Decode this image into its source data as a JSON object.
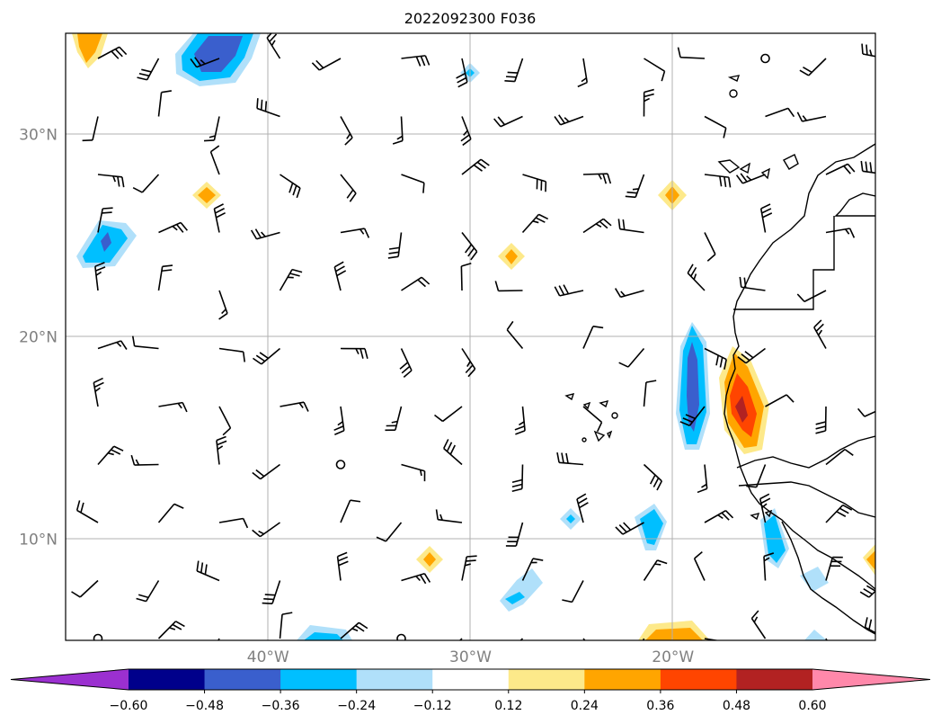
{
  "title": "2022092300 F036",
  "axes": {
    "lat_labels": [
      {
        "lat": 30,
        "label": "30°N"
      },
      {
        "lat": 20,
        "label": "20°N"
      },
      {
        "lat": 10,
        "label": "10°N"
      }
    ],
    "lon_labels": [
      {
        "lon": -40,
        "label": "40°W"
      },
      {
        "lon": -30,
        "label": "30°W"
      },
      {
        "lon": -20,
        "label": "20°W"
      }
    ],
    "extent": {
      "lon_min": -50,
      "lon_max": -10,
      "lat_min": 5,
      "lat_max": 35
    },
    "gridlines": true
  },
  "colorbar": {
    "labels": [
      "−0.60",
      "−0.48",
      "−0.36",
      "−0.24",
      "−0.12",
      "0.12",
      "0.24",
      "0.36",
      "0.48",
      "0.60"
    ],
    "colors": [
      "#9b30d0",
      "#00008b",
      "#3a5fcd",
      "#00bfff",
      "#b0e0fa",
      "#ffffff",
      "#fde98a",
      "#ffa500",
      "#ff4500",
      "#b22222",
      "#ff88aa"
    ],
    "extend": "both"
  }
}
